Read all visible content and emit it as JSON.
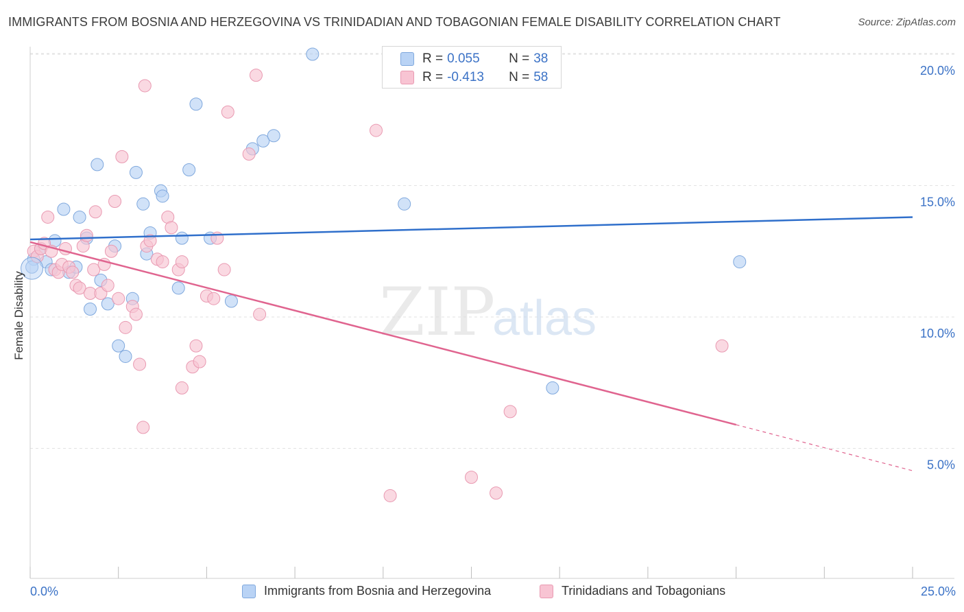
{
  "header": {
    "title": "IMMIGRANTS FROM BOSNIA AND HERZEGOVINA VS TRINIDADIAN AND TOBAGONIAN FEMALE DISABILITY CORRELATION CHART",
    "source": "Source: ZipAtlas.com"
  },
  "stats": {
    "r_label": "R =",
    "n_label": "N =",
    "series": [
      {
        "r": "0.055",
        "n": "38"
      },
      {
        "r": "-0.413",
        "n": "58"
      }
    ]
  },
  "colors": {
    "blue_fill": "#b9d3f5",
    "blue_stroke": "#7fa8dd",
    "blue_line": "#2f6fcb",
    "pink_fill": "#f8c4d3",
    "pink_stroke": "#e999b1",
    "pink_line": "#e0648f",
    "tick_text": "#3b72c6"
  },
  "chart_data": {
    "type": "scatter",
    "ylabel": "Female Disability",
    "x_tick_labels": [
      "0.0%",
      "25.0%"
    ],
    "y_tick_labels": [
      "20.0%",
      "15.0%",
      "10.0%",
      "5.0%"
    ],
    "y_ticks": [
      20,
      15,
      10,
      5
    ],
    "xlim": [
      0,
      25
    ],
    "ylim": [
      0,
      20.5
    ],
    "grid": true,
    "watermark": "ZIPatlas",
    "series": [
      {
        "name": "Immigrants from Bosnia and Herzegovina",
        "color": "#b9d3f5",
        "trend": {
          "x0": 0,
          "y0": 12.95,
          "x1": 25,
          "y1": 13.8
        },
        "points": [
          [
            0.1,
            12.2
          ],
          [
            0.3,
            12.6
          ],
          [
            0.45,
            12.1
          ],
          [
            0.6,
            11.8
          ],
          [
            0.7,
            12.9
          ],
          [
            0.95,
            14.1
          ],
          [
            1.1,
            11.7
          ],
          [
            1.3,
            11.9
          ],
          [
            1.4,
            13.8
          ],
          [
            1.6,
            13.0
          ],
          [
            1.7,
            10.3
          ],
          [
            1.9,
            15.8
          ],
          [
            2.0,
            11.4
          ],
          [
            2.2,
            10.5
          ],
          [
            2.4,
            12.7
          ],
          [
            2.5,
            8.9
          ],
          [
            2.7,
            8.5
          ],
          [
            2.9,
            10.7
          ],
          [
            3.0,
            15.5
          ],
          [
            3.2,
            14.3
          ],
          [
            3.3,
            12.4
          ],
          [
            3.4,
            13.2
          ],
          [
            3.7,
            14.8
          ],
          [
            3.75,
            14.6
          ],
          [
            4.2,
            11.1
          ],
          [
            4.3,
            13.0
          ],
          [
            4.5,
            15.6
          ],
          [
            4.7,
            18.1
          ],
          [
            5.1,
            13.0
          ],
          [
            5.7,
            10.6
          ],
          [
            6.3,
            16.4
          ],
          [
            6.6,
            16.7
          ],
          [
            6.9,
            16.9
          ],
          [
            8.0,
            20.0
          ],
          [
            10.6,
            14.3
          ],
          [
            14.8,
            7.3
          ],
          [
            20.1,
            12.1
          ],
          [
            0.05,
            11.9
          ]
        ]
      },
      {
        "name": "Trinidadians and Tobagonians",
        "color": "#f8c4d3",
        "trend": {
          "x0": 0,
          "y0": 12.85,
          "x1": 20.0,
          "y1": 5.9,
          "dash_to_x": 25,
          "dash_to_y": 4.15
        },
        "points": [
          [
            0.1,
            12.5
          ],
          [
            0.2,
            12.3
          ],
          [
            0.3,
            12.6
          ],
          [
            0.4,
            12.8
          ],
          [
            0.5,
            13.8
          ],
          [
            0.6,
            12.5
          ],
          [
            0.7,
            11.8
          ],
          [
            0.8,
            11.7
          ],
          [
            0.9,
            12.0
          ],
          [
            1.0,
            12.6
          ],
          [
            1.1,
            11.9
          ],
          [
            1.2,
            11.7
          ],
          [
            1.3,
            11.2
          ],
          [
            1.4,
            11.1
          ],
          [
            1.5,
            12.7
          ],
          [
            1.6,
            13.1
          ],
          [
            1.7,
            10.9
          ],
          [
            1.8,
            11.8
          ],
          [
            1.85,
            14.0
          ],
          [
            2.0,
            10.9
          ],
          [
            2.1,
            12.0
          ],
          [
            2.2,
            11.2
          ],
          [
            2.3,
            12.5
          ],
          [
            2.4,
            14.4
          ],
          [
            2.5,
            10.7
          ],
          [
            2.6,
            16.1
          ],
          [
            2.7,
            9.6
          ],
          [
            2.9,
            10.4
          ],
          [
            3.0,
            10.1
          ],
          [
            3.1,
            8.2
          ],
          [
            3.2,
            5.8
          ],
          [
            3.25,
            18.8
          ],
          [
            3.3,
            12.7
          ],
          [
            3.4,
            12.9
          ],
          [
            3.6,
            12.2
          ],
          [
            3.75,
            12.1
          ],
          [
            3.9,
            13.8
          ],
          [
            4.0,
            13.4
          ],
          [
            4.2,
            11.8
          ],
          [
            4.3,
            12.1
          ],
          [
            4.3,
            7.3
          ],
          [
            4.6,
            8.1
          ],
          [
            4.7,
            8.9
          ],
          [
            4.8,
            8.3
          ],
          [
            5.0,
            10.8
          ],
          [
            5.2,
            10.7
          ],
          [
            5.3,
            13.0
          ],
          [
            5.5,
            11.8
          ],
          [
            5.6,
            17.8
          ],
          [
            6.2,
            16.2
          ],
          [
            6.4,
            19.2
          ],
          [
            6.5,
            10.1
          ],
          [
            9.8,
            17.1
          ],
          [
            10.2,
            3.2
          ],
          [
            12.5,
            3.9
          ],
          [
            13.2,
            3.3
          ],
          [
            13.6,
            6.4
          ],
          [
            19.6,
            8.9
          ]
        ]
      }
    ]
  }
}
